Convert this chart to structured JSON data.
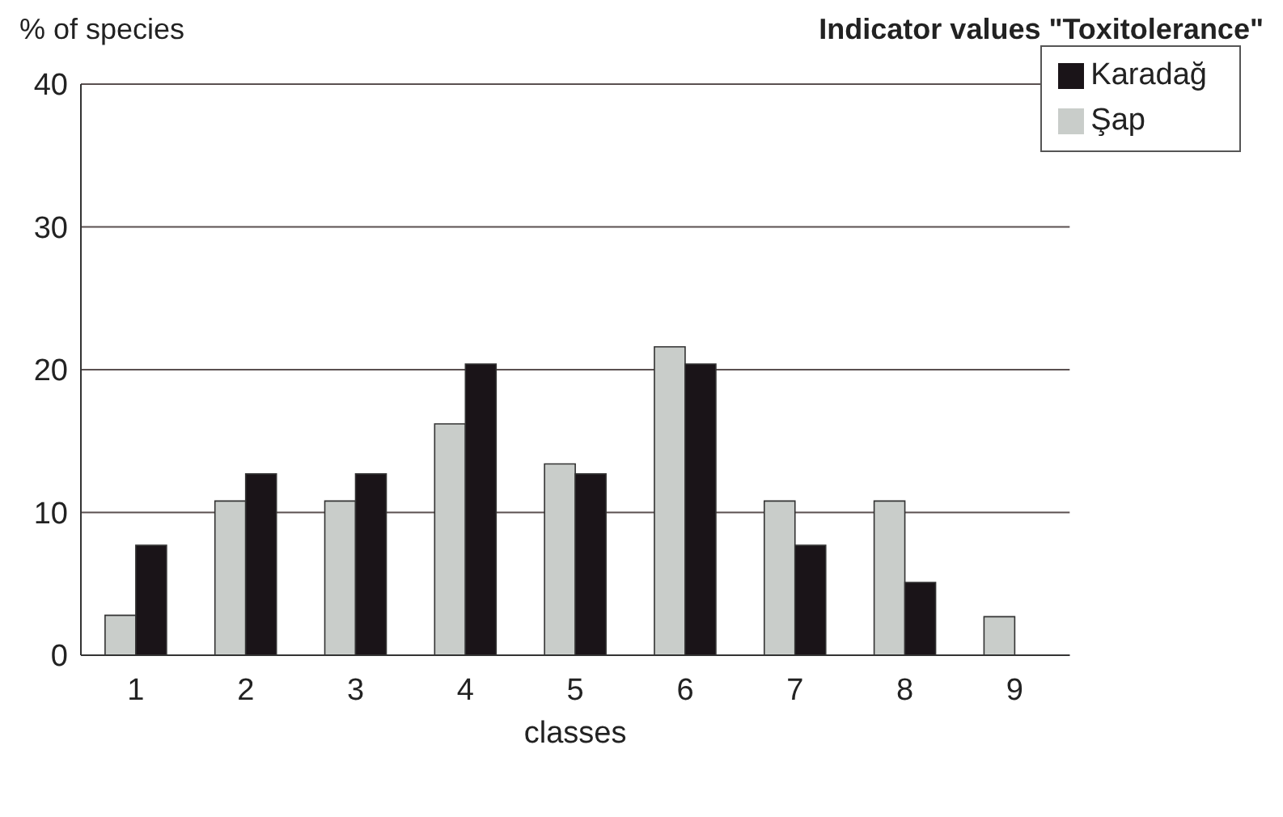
{
  "chart_data": {
    "type": "bar",
    "title": "Indicator values \"Toxitolerance\"",
    "ylabel": "% of species",
    "xlabel": "classes",
    "categories": [
      "1",
      "2",
      "3",
      "4",
      "5",
      "6",
      "7",
      "8",
      "9"
    ],
    "series": [
      {
        "name": "Şap",
        "color": "#c9cdca",
        "values": [
          2.8,
          10.8,
          10.8,
          16.2,
          13.4,
          21.6,
          10.8,
          10.8,
          2.7
        ]
      },
      {
        "name": "Karadağ",
        "color": "#1a1418",
        "values": [
          7.7,
          12.7,
          12.7,
          20.4,
          12.7,
          20.4,
          7.7,
          5.1,
          null
        ]
      }
    ],
    "ylim": [
      0,
      40
    ],
    "yticks": [
      0,
      10,
      20,
      30,
      40
    ],
    "grid": "y",
    "legend": "top right"
  }
}
